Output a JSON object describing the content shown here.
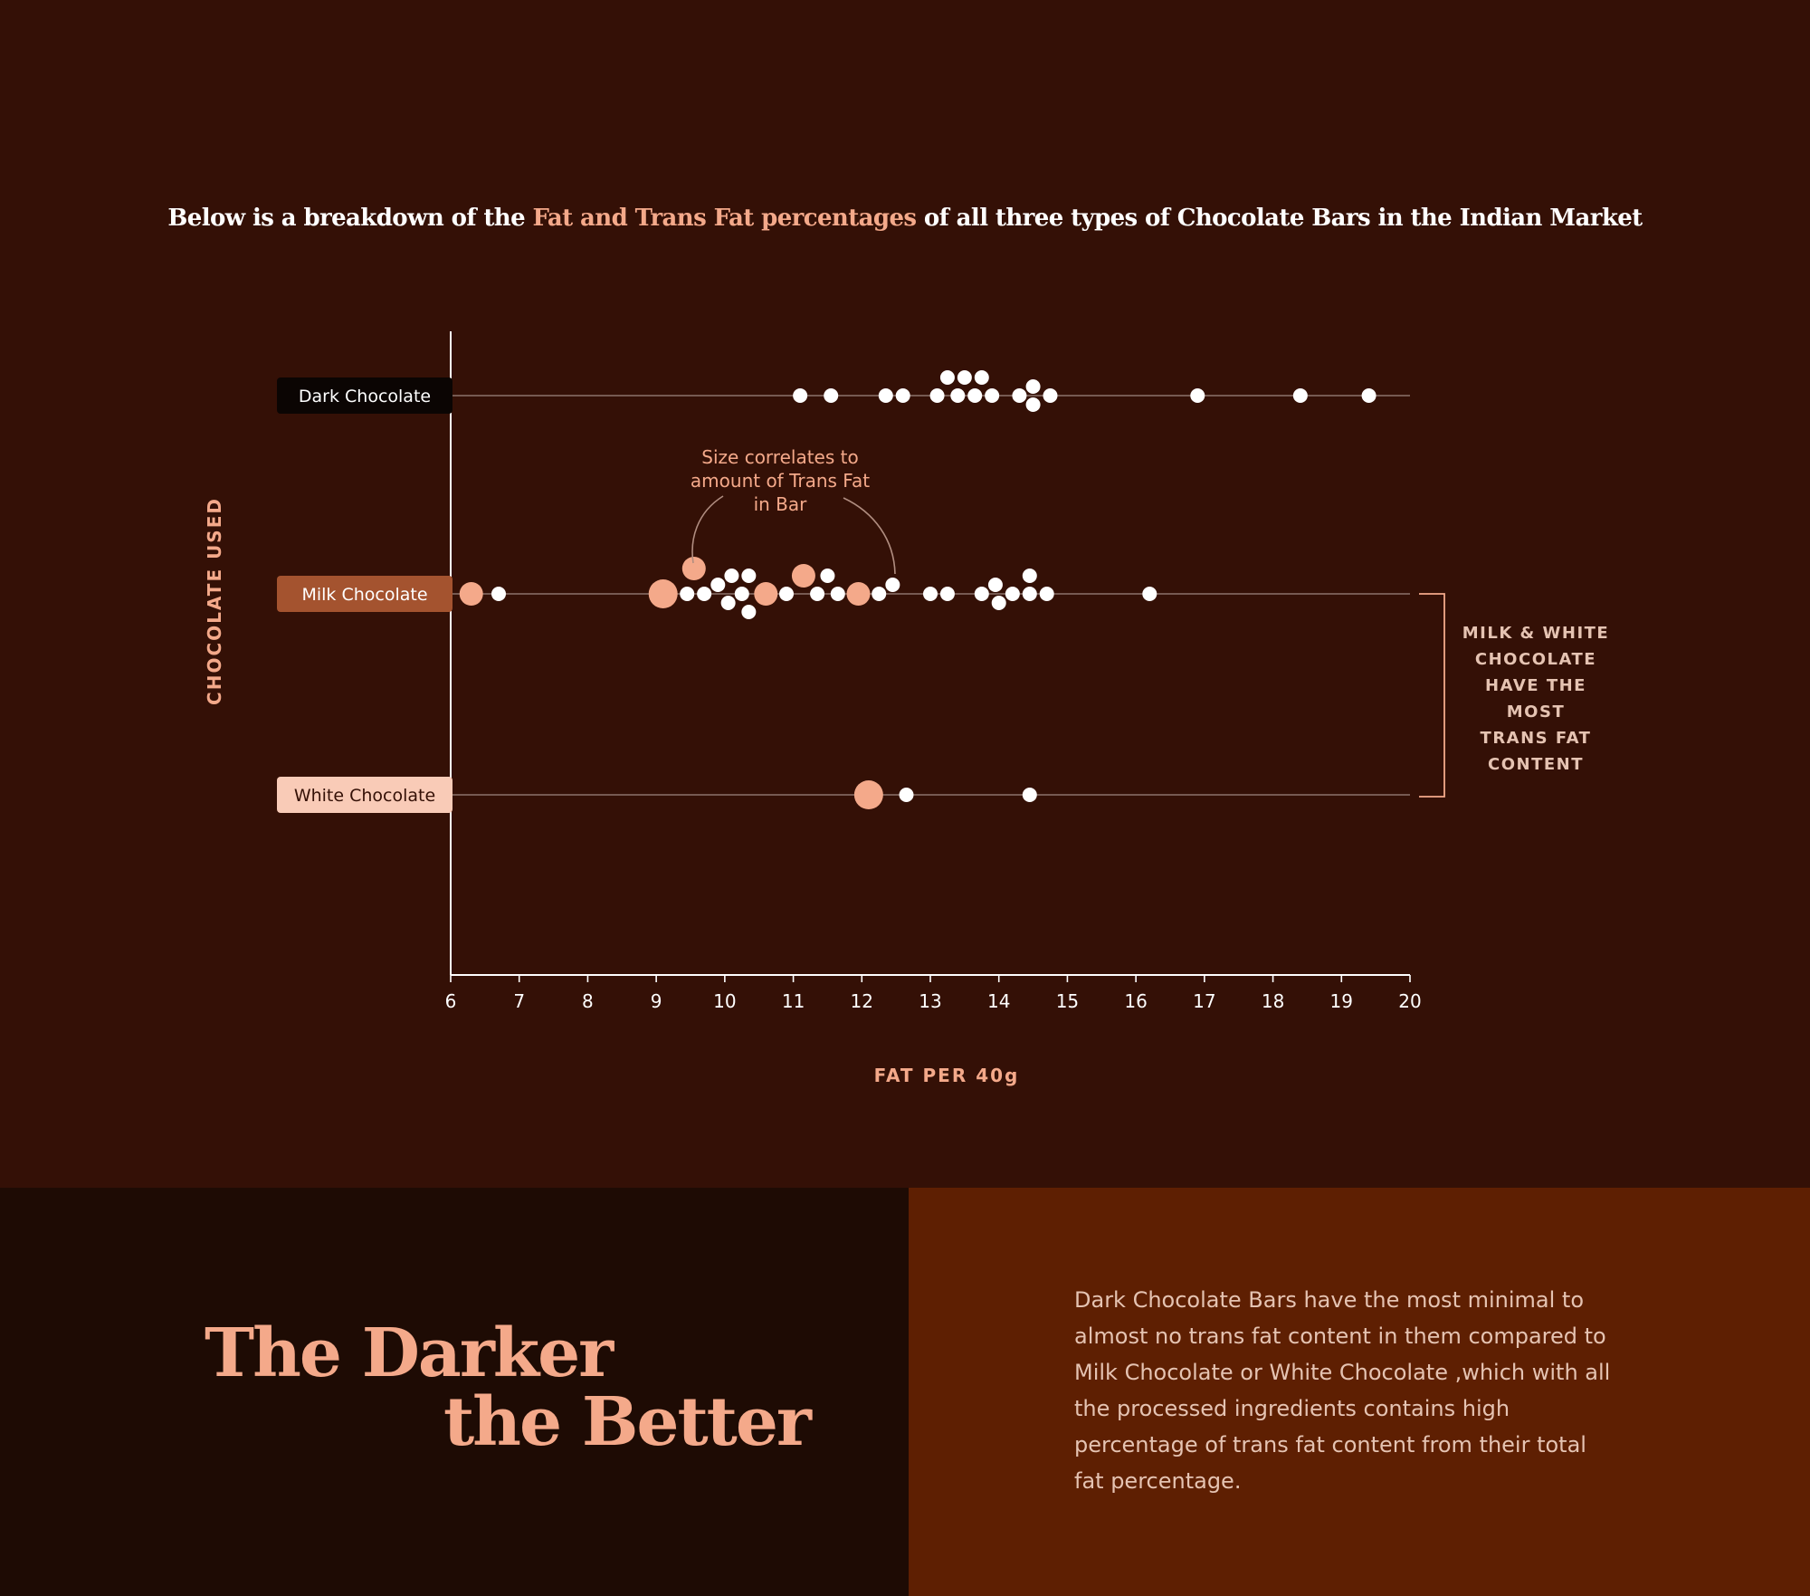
{
  "headline": {
    "pre": "Below is a breakdown of the ",
    "highlight": "Fat and Trans Fat percentages",
    "post": " of all three types of Chocolate Bars in the Indian Market"
  },
  "colors": {
    "background": "#341006",
    "accent": "#f4a98a",
    "dot_white": "#ffffff",
    "dark_label_bg": "#0b0503",
    "milk_label_bg": "#a4532f",
    "white_label_bg": "#f9cbb7",
    "bottom_left_bg": "#1e0b04",
    "bottom_right_bg": "#5e1f02"
  },
  "chart_data": {
    "type": "scatter",
    "ylabel": "CHOCOLATE USED",
    "xlabel": "FAT PER 40g",
    "xlim": [
      6,
      20
    ],
    "xticks": [
      6,
      7,
      8,
      9,
      10,
      11,
      12,
      13,
      14,
      15,
      16,
      17,
      18,
      19,
      20
    ],
    "categories": [
      "Dark Chocolate",
      "Milk Chocolate",
      "White Chocolate"
    ],
    "series": [
      {
        "name": "Dark Chocolate",
        "points": [
          {
            "x": 11.1,
            "size": "small"
          },
          {
            "x": 11.55,
            "size": "small"
          },
          {
            "x": 12.35,
            "size": "small"
          },
          {
            "x": 12.6,
            "size": "small"
          },
          {
            "x": 13.1,
            "size": "small"
          },
          {
            "x": 13.25,
            "size": "small"
          },
          {
            "x": 13.4,
            "size": "small"
          },
          {
            "x": 13.5,
            "size": "small"
          },
          {
            "x": 13.65,
            "size": "small"
          },
          {
            "x": 13.75,
            "size": "small"
          },
          {
            "x": 13.9,
            "size": "small"
          },
          {
            "x": 14.3,
            "size": "small"
          },
          {
            "x": 14.5,
            "size": "small"
          },
          {
            "x": 14.5,
            "size": "small"
          },
          {
            "x": 14.75,
            "size": "small"
          },
          {
            "x": 16.9,
            "size": "small"
          },
          {
            "x": 18.4,
            "size": "small"
          },
          {
            "x": 19.4,
            "size": "small"
          }
        ]
      },
      {
        "name": "Milk Chocolate",
        "points": [
          {
            "x": 6.3,
            "size": "medium"
          },
          {
            "x": 6.7,
            "size": "small"
          },
          {
            "x": 9.1,
            "size": "large"
          },
          {
            "x": 9.45,
            "size": "small"
          },
          {
            "x": 9.55,
            "size": "medium"
          },
          {
            "x": 9.7,
            "size": "small"
          },
          {
            "x": 9.9,
            "size": "small"
          },
          {
            "x": 10.05,
            "size": "small"
          },
          {
            "x": 10.1,
            "size": "small"
          },
          {
            "x": 10.25,
            "size": "small"
          },
          {
            "x": 10.35,
            "size": "small"
          },
          {
            "x": 10.35,
            "size": "small"
          },
          {
            "x": 10.6,
            "size": "medium"
          },
          {
            "x": 10.9,
            "size": "small"
          },
          {
            "x": 11.15,
            "size": "medium"
          },
          {
            "x": 11.35,
            "size": "small"
          },
          {
            "x": 11.5,
            "size": "small"
          },
          {
            "x": 11.65,
            "size": "small"
          },
          {
            "x": 11.95,
            "size": "medium"
          },
          {
            "x": 12.25,
            "size": "small"
          },
          {
            "x": 12.45,
            "size": "small"
          },
          {
            "x": 13.0,
            "size": "small"
          },
          {
            "x": 13.25,
            "size": "small"
          },
          {
            "x": 13.75,
            "size": "small"
          },
          {
            "x": 13.95,
            "size": "small"
          },
          {
            "x": 14.0,
            "size": "small"
          },
          {
            "x": 14.2,
            "size": "small"
          },
          {
            "x": 14.45,
            "size": "small"
          },
          {
            "x": 14.45,
            "size": "small"
          },
          {
            "x": 14.7,
            "size": "small"
          },
          {
            "x": 16.2,
            "size": "small"
          }
        ]
      },
      {
        "name": "White Chocolate",
        "points": [
          {
            "x": 12.1,
            "size": "large"
          },
          {
            "x": 12.65,
            "size": "small"
          },
          {
            "x": 14.45,
            "size": "small"
          }
        ]
      }
    ],
    "annotation": [
      "Size correlates to",
      "amount of Trans Fat",
      "in Bar"
    ],
    "side_note": [
      "MILK & WHITE",
      "CHOCOLATE",
      "HAVE THE",
      "MOST",
      "TRANS FAT",
      "CONTENT"
    ]
  },
  "bottom": {
    "title_line1": "The Darker",
    "title_line2": "the Better",
    "body": "Dark Chocolate Bars have the most minimal to almost no trans fat content in them compared to Milk Chocolate or White Chocolate ,which with all the processed ingredients contains high percentage of trans fat content from their total fat percentage."
  }
}
